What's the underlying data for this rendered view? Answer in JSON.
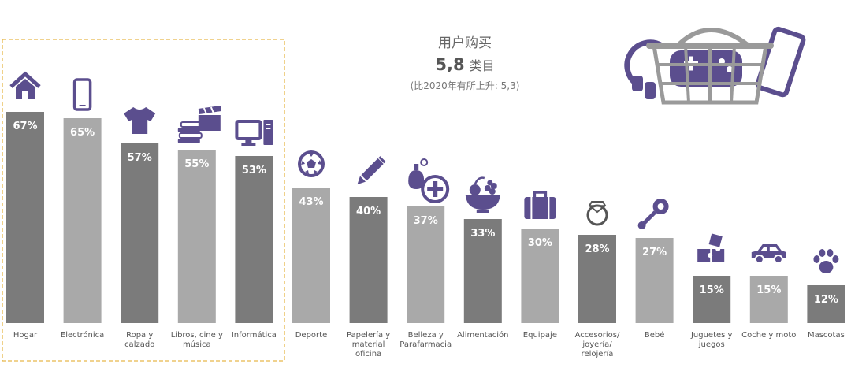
{
  "header": {
    "title_line1": "用户购买",
    "title_number": "5,8",
    "title_unit": "类目",
    "title_note": "(比2020年有所上升: 5,3)"
  },
  "colors": {
    "dark_bar": "#7b7b7b",
    "light_bar": "#a9a9a9",
    "icon_purple": "#5b4e8e",
    "highlight_border": "#e6b84a",
    "basket_gray": "#9a9a9a"
  },
  "chart_data": {
    "type": "bar",
    "unit": "%",
    "ylim": [
      0,
      100
    ],
    "grid": false,
    "highlighted_categories": [
      "Hogar",
      "Electrónica",
      "Ropa y calzado",
      "Libros, cine y música",
      "Informática"
    ],
    "categories": [
      {
        "label_lines": [
          "Hogar"
        ],
        "value": 67,
        "value_label": "67%",
        "shade": "dark",
        "icon": "house-icon"
      },
      {
        "label_lines": [
          "Electrónica"
        ],
        "value": 65,
        "value_label": "65%",
        "shade": "light",
        "icon": "smartphone-icon"
      },
      {
        "label_lines": [
          "Ropa y",
          "calzado"
        ],
        "value": 57,
        "value_label": "57%",
        "shade": "dark",
        "icon": "tshirt-icon"
      },
      {
        "label_lines": [
          "Libros, cine y",
          "música"
        ],
        "value": 55,
        "value_label": "55%",
        "shade": "light",
        "icon": "books-clapper-icon"
      },
      {
        "label_lines": [
          "Informática"
        ],
        "value": 53,
        "value_label": "53%",
        "shade": "dark",
        "icon": "computer-icon"
      },
      {
        "label_lines": [
          "Deporte"
        ],
        "value": 43,
        "value_label": "43%",
        "shade": "light",
        "icon": "soccer-ball-icon"
      },
      {
        "label_lines": [
          "Papelería y",
          "material",
          "oficina"
        ],
        "value": 40,
        "value_label": "40%",
        "shade": "dark",
        "icon": "pencil-icon"
      },
      {
        "label_lines": [
          "Belleza y",
          "Parafarmacia"
        ],
        "value": 37,
        "value_label": "37%",
        "shade": "light",
        "icon": "perfume-cross-icon"
      },
      {
        "label_lines": [
          "Alimentación"
        ],
        "value": 33,
        "value_label": "33%",
        "shade": "dark",
        "icon": "fruit-bowl-icon"
      },
      {
        "label_lines": [
          "Equipaje"
        ],
        "value": 30,
        "value_label": "30%",
        "shade": "light",
        "icon": "suitcase-icon"
      },
      {
        "label_lines": [
          "Accesorios/",
          "joyería/",
          "relojería"
        ],
        "value": 28,
        "value_label": "28%",
        "shade": "dark",
        "icon": "ring-icon"
      },
      {
        "label_lines": [
          "Bebé"
        ],
        "value": 27,
        "value_label": "27%",
        "shade": "light",
        "icon": "rattle-icon"
      },
      {
        "label_lines": [
          "Juguetes y",
          "juegos"
        ],
        "value": 15,
        "value_label": "15%",
        "shade": "dark",
        "icon": "puzzle-icon"
      },
      {
        "label_lines": [
          "Coche y moto"
        ],
        "value": 15,
        "value_label": "15%",
        "shade": "light",
        "icon": "car-icon"
      },
      {
        "label_lines": [
          "Mascotas"
        ],
        "value": 12,
        "value_label": "12%",
        "shade": "dark",
        "icon": "paw-icon"
      }
    ]
  },
  "decoration": {
    "basket_icon": "shopping-basket-with-headphones-gamepad-phone-icon"
  }
}
